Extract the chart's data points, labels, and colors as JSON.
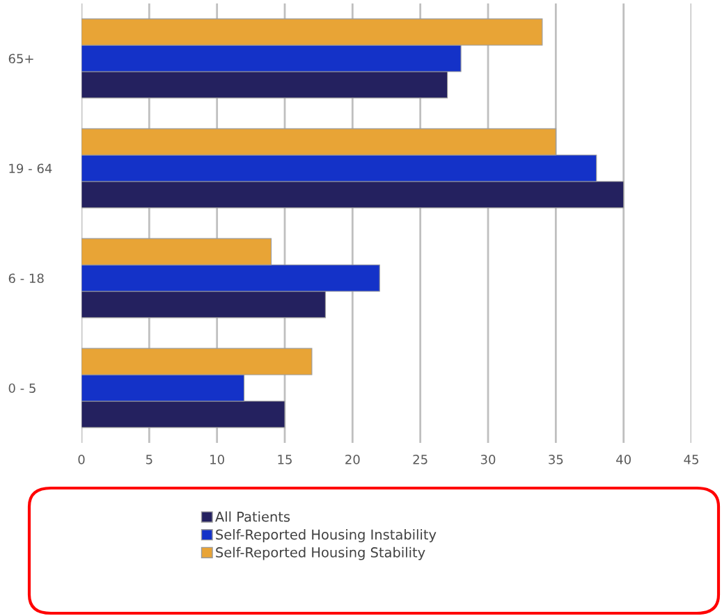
{
  "chart_data": {
    "type": "bar",
    "orientation": "horizontal",
    "categories": [
      "65+",
      "19 - 64",
      "6 - 18",
      "0 - 5"
    ],
    "series": [
      {
        "name": "All Patients",
        "color": "#24215f",
        "values": [
          27,
          40,
          18,
          15
        ]
      },
      {
        "name": "Self-Reported Housing Instability",
        "color": "#1432c8",
        "values": [
          28,
          38,
          22,
          12
        ]
      },
      {
        "name": "Self-Reported Housing Stability",
        "color": "#e8a436",
        "values": [
          34,
          35,
          14,
          17
        ]
      }
    ],
    "xlim": [
      0,
      45
    ],
    "xticks": [
      0,
      5,
      10,
      15,
      20,
      25,
      30,
      35,
      40,
      45
    ],
    "grid": "x",
    "legend": "bottom"
  }
}
